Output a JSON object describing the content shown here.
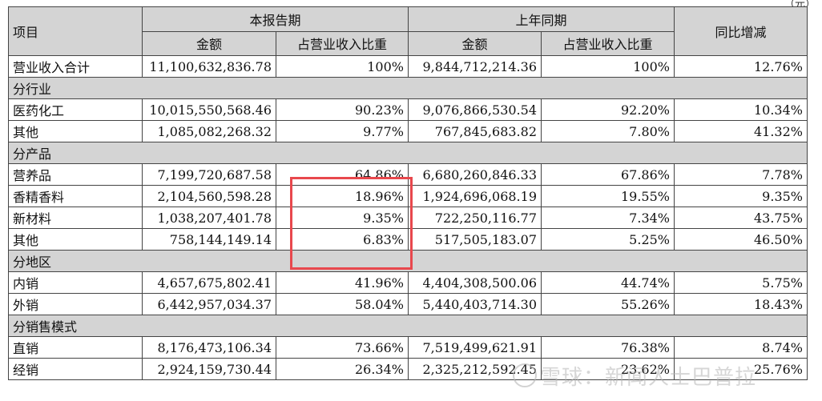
{
  "corner_fragment": "（元）",
  "headers": {
    "item": "项目",
    "current_period": "本报告期",
    "prior_period": "上年同期",
    "yoy": "同比增减",
    "amount": "金额",
    "share": "占营业收入比重"
  },
  "total": {
    "label": "营业收入合计",
    "cur_amount": "11,100,632,836.78",
    "cur_share": "100%",
    "prev_amount": "9,844,712,214.36",
    "prev_share": "100%",
    "yoy": "12.76%"
  },
  "sections": [
    {
      "title": "分行业",
      "rows": [
        {
          "label": "医药化工",
          "cur_amount": "10,015,550,568.46",
          "cur_share": "90.23%",
          "prev_amount": "9,076,866,530.54",
          "prev_share": "92.20%",
          "yoy": "10.34%"
        },
        {
          "label": "其他",
          "cur_amount": "1,085,082,268.32",
          "cur_share": "9.77%",
          "prev_amount": "767,845,683.82",
          "prev_share": "7.80%",
          "yoy": "41.32%"
        }
      ]
    },
    {
      "title": "分产品",
      "rows": [
        {
          "label": "营养品",
          "cur_amount": "7,199,720,687.58",
          "cur_share": "64.86%",
          "prev_amount": "6,680,260,846.33",
          "prev_share": "67.86%",
          "yoy": "7.78%"
        },
        {
          "label": "香精香料",
          "cur_amount": "2,104,560,598.28",
          "cur_share": "18.96%",
          "prev_amount": "1,924,696,068.19",
          "prev_share": "19.55%",
          "yoy": "9.35%"
        },
        {
          "label": "新材料",
          "cur_amount": "1,038,207,401.78",
          "cur_share": "9.35%",
          "prev_amount": "722,250,116.77",
          "prev_share": "7.34%",
          "yoy": "43.75%"
        },
        {
          "label": "其他",
          "cur_amount": "758,144,149.14",
          "cur_share": "6.83%",
          "prev_amount": "517,505,183.07",
          "prev_share": "5.25%",
          "yoy": "46.50%"
        }
      ]
    },
    {
      "title": "分地区",
      "rows": [
        {
          "label": "内销",
          "cur_amount": "4,657,675,802.41",
          "cur_share": "41.96%",
          "prev_amount": "4,404,308,500.06",
          "prev_share": "44.74%",
          "yoy": "5.75%"
        },
        {
          "label": "外销",
          "cur_amount": "6,442,957,034.37",
          "cur_share": "58.04%",
          "prev_amount": "5,440,403,714.30",
          "prev_share": "55.26%",
          "yoy": "18.43%"
        }
      ]
    },
    {
      "title": "分销售模式",
      "rows": [
        {
          "label": "直销",
          "cur_amount": "8,176,473,106.34",
          "cur_share": "73.66%",
          "prev_amount": "7,519,499,621.91",
          "prev_share": "76.38%",
          "yoy": "8.74%"
        },
        {
          "label": "经销",
          "cur_amount": "2,924,159,730.44",
          "cur_share": "26.34%",
          "prev_amount": "2,325,212,592.45",
          "prev_share": "23.62%",
          "yoy": "25.76%"
        }
      ]
    }
  ],
  "watermark": {
    "text": "雪球：新闻人士巴普拉"
  },
  "highlight_color": "#e8484d"
}
